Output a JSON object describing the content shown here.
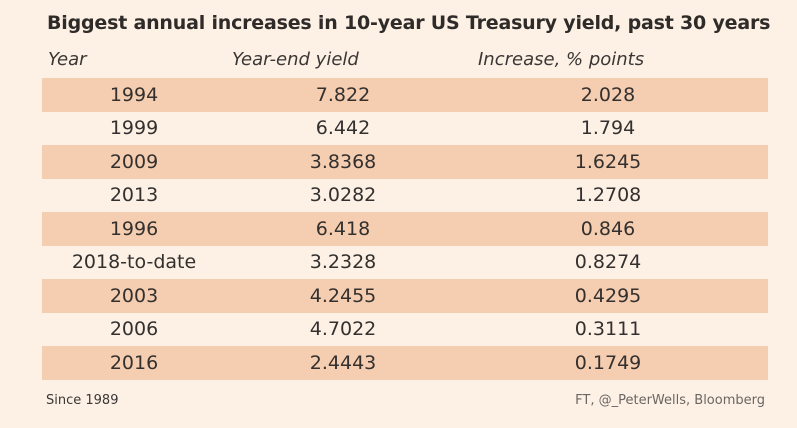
{
  "chart_data": {
    "type": "table",
    "title": "Biggest annual increases in 10-year US Treasury yield, past 30 years",
    "columns": [
      "Year",
      "Year-end yield",
      "Increase, % points"
    ],
    "rows": [
      {
        "year": "1994",
        "yield": "7.822",
        "increase": "2.028"
      },
      {
        "year": "1999",
        "yield": "6.442",
        "increase": "1.794"
      },
      {
        "year": "2009",
        "yield": "3.8368",
        "increase": "1.6245"
      },
      {
        "year": "2013",
        "yield": "3.0282",
        "increase": "1.2708"
      },
      {
        "year": "1996",
        "yield": "6.418",
        "increase": "0.846"
      },
      {
        "year": "2018-to-date",
        "yield": "3.2328",
        "increase": "0.8274"
      },
      {
        "year": "2003",
        "yield": "4.2455",
        "increase": "0.4295"
      },
      {
        "year": "2006",
        "yield": "4.7022",
        "increase": "0.3111"
      },
      {
        "year": "2016",
        "yield": "2.4443",
        "increase": "0.1749"
      }
    ],
    "note": "Since 1989",
    "source": "FT, @_PeterWells, Bloomberg"
  },
  "colors": {
    "background": "#fdf1e6",
    "row_shade": "#f5cdb0",
    "text": "#33302e"
  }
}
